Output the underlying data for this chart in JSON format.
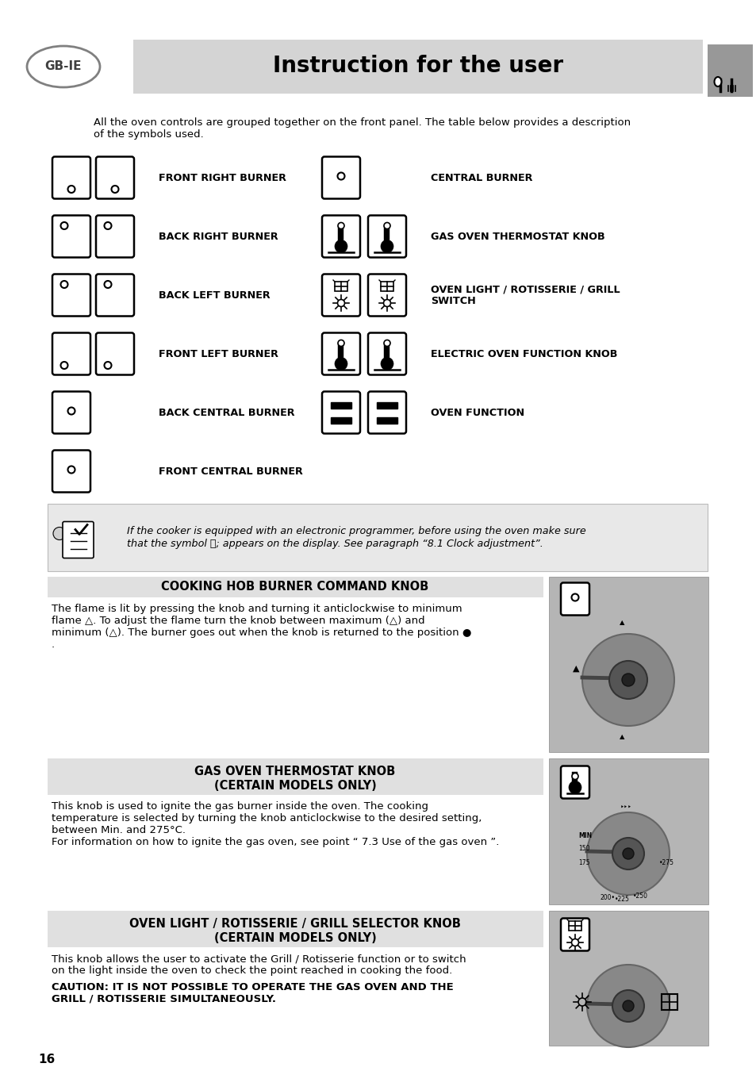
{
  "title": "Instruction for the user",
  "gb_ie_label": "GB-IE",
  "bg_color": "#ffffff",
  "header_bg": "#d4d4d4",
  "page_number": "16",
  "section_bg": "#e0e0e0",
  "note_bg": "#e8e8e8",
  "intro_text_line1": "All the oven controls are grouped together on the front panel. The table below provides a description",
  "intro_text_line2": "of the symbols used.",
  "left_labels": [
    "FRONT RIGHT BURNER",
    "BACK RIGHT BURNER",
    "BACK LEFT BURNER",
    "FRONT LEFT BURNER",
    "BACK CENTRAL BURNER",
    "FRONT CENTRAL BURNER"
  ],
  "right_labels": [
    "CENTRAL BURNER",
    "GAS OVEN THERMOSTAT KNOB",
    "OVEN LIGHT / ROTISSERIE / GRILL\nSWITCH",
    "ELECTRIC OVEN FUNCTION KNOB",
    "OVEN FUNCTION",
    ""
  ],
  "left_n_icons": [
    2,
    2,
    2,
    2,
    1,
    1
  ],
  "right_n_icons": [
    1,
    2,
    2,
    2,
    2,
    0
  ],
  "note_italic": "If the cooker is equipped with an electronic programmer, before using the oven make sure\nthat the symbol Ⓞ; appears on the display. See paragraph “8.1 Clock adjustment”.",
  "section1_title": "COOKING HOB BURNER COMMAND KNOB",
  "section1_body": "The flame is lit by pressing the knob and turning it anticlockwise to minimum\nflame △. To adjust the flame turn the knob between maximum (△) and\nminimum (△). The burner goes out when the knob is returned to the position ●\n.",
  "section2_title1": "GAS OVEN THERMOSTAT KNOB",
  "section2_title2": "(CERTAIN MODELS ONLY)",
  "section2_body": "This knob is used to ignite the gas burner inside the oven. The cooking\ntemperature is selected by turning the knob anticlockwise to the desired setting,\nbetween Min. and 275°C.\nFor information on how to ignite the gas oven, see point “ 7.3 Use of the gas oven ”.",
  "section3_title1": "OVEN LIGHT / ROTISSERIE / GRILL SELECTOR KNOB",
  "section3_title2": "(CERTAIN MODELS ONLY)",
  "section3_body_normal": "This knob allows the user to activate the Grill / Rotisserie function or to switch\non the light inside the oven to check the point reached in cooking the food.",
  "section3_body_bold": "CAUTION: IT IS NOT POSSIBLE TO OPERATE THE GAS OVEN AND THE\nGRILL / ROTISSERIE SIMULTANEOUSLY."
}
